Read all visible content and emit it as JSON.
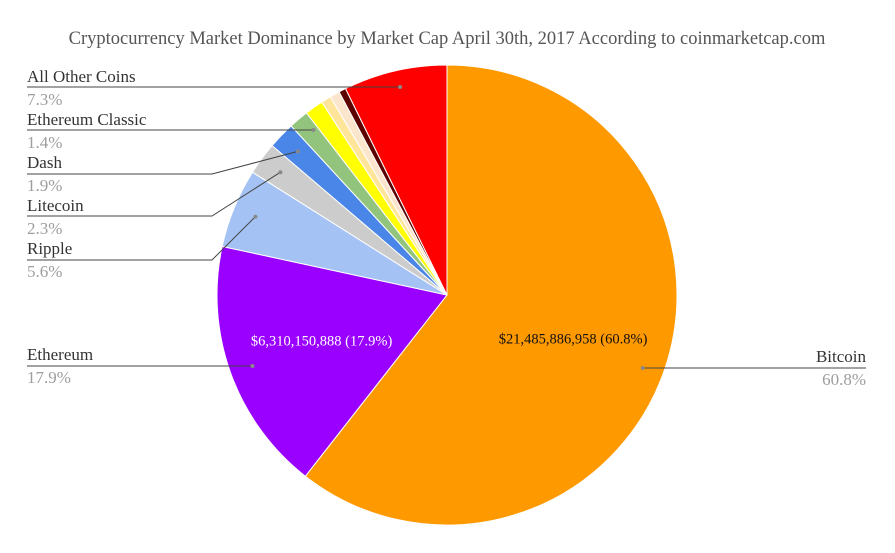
{
  "chart_data": {
    "type": "pie",
    "title": "Cryptocurrency Market Dominance by Market Cap April 30th, 2017 According to coinmarketcap.com",
    "slices": [
      {
        "name": "Bitcoin",
        "percent_label": "60.8%",
        "value": 60.8,
        "color": "#ff9900",
        "inside_label": "$21,485,886,958 (60.8%)",
        "inside_color": "#111111"
      },
      {
        "name": "Ethereum",
        "percent_label": "17.9%",
        "value": 17.9,
        "color": "#9900ff",
        "inside_label": "$6,310,150,888 (17.9%)",
        "inside_color": "#ffffff"
      },
      {
        "name": "Ripple",
        "percent_label": "5.6%",
        "value": 5.6,
        "color": "#a4c2f4"
      },
      {
        "name": "Litecoin",
        "percent_label": "2.3%",
        "value": 2.3,
        "color": "#cccccc"
      },
      {
        "name": "Dash",
        "percent_label": "1.9%",
        "value": 1.9,
        "color": "#4a86e8"
      },
      {
        "name": "Ethereum Classic",
        "percent_label": "1.4%",
        "value": 1.4,
        "color": "#93c47d"
      },
      {
        "value": 1.3,
        "color": "#ffff00"
      },
      {
        "value": 0.7,
        "color": "#ffe599"
      },
      {
        "value": 0.7,
        "color": "#fce5cd"
      },
      {
        "value": 0.5,
        "color": "#5c0000"
      },
      {
        "name": "All Other Coins",
        "percent_label": "7.3%",
        "value": 7.3,
        "color": "#ff0000"
      }
    ],
    "legend": "labels-outside"
  }
}
